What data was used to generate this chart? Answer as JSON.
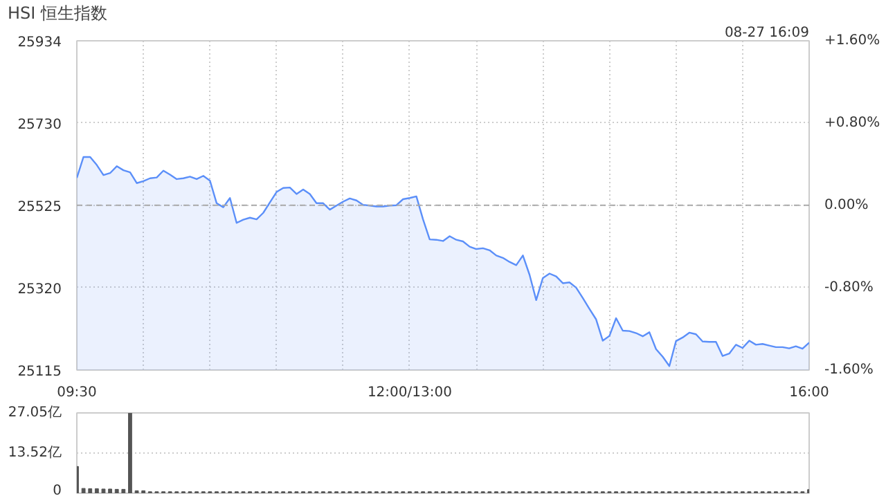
{
  "chart_data": [
    {
      "type": "area",
      "title": "HSI 恒生指数",
      "annotations": [
        "08-27 16:09"
      ],
      "categories": [
        "09:30",
        null,
        null,
        null,
        null,
        null,
        null,
        null,
        null,
        null,
        null,
        null,
        null,
        null,
        null,
        null,
        null,
        null,
        null,
        null,
        null,
        null,
        null,
        null,
        null,
        null,
        null,
        null,
        null,
        null,
        null,
        null,
        null,
        null,
        null,
        null,
        null,
        null,
        null,
        null,
        null,
        null,
        null,
        null,
        null,
        null,
        null,
        null,
        null,
        null,
        "12:00/13:00",
        null,
        null,
        null,
        null,
        null,
        null,
        null,
        null,
        null,
        null,
        null,
        null,
        null,
        null,
        null,
        null,
        null,
        null,
        null,
        null,
        null,
        null,
        null,
        null,
        null,
        null,
        null,
        null,
        null,
        null,
        null,
        null,
        null,
        null,
        null,
        null,
        null,
        null,
        null,
        null,
        null,
        null,
        null,
        null,
        null,
        null,
        null,
        null,
        null,
        null,
        null,
        null,
        null,
        null,
        null,
        null,
        null,
        null,
        null,
        "16:00"
      ],
      "series": [
        {
          "color": "#5b8ff9",
          "values": [
            25593,
            25645,
            25645,
            25625,
            25600,
            25605,
            25622,
            25612,
            25607,
            25580,
            25585,
            25592,
            25594,
            25611,
            25601,
            25590,
            25592,
            25596,
            25590,
            25598,
            25586,
            25530,
            25520,
            25543,
            25481,
            25489,
            25494,
            25490,
            25506,
            25532,
            25558,
            25568,
            25569,
            25553,
            25564,
            25553,
            25530,
            25530,
            25514,
            25524,
            25534,
            25542,
            25537,
            25526,
            25524,
            25522,
            25522,
            25524,
            25525,
            25540,
            25543,
            25547,
            25490,
            25440,
            25439,
            25436,
            25448,
            25439,
            25435,
            25422,
            25416,
            25418,
            25413,
            25400,
            25394,
            25384,
            25376,
            25400,
            25352,
            25289,
            25344,
            25355,
            25348,
            25331,
            25333,
            25320,
            25294,
            25267,
            25241,
            25188,
            25200,
            25244,
            25213,
            25212,
            25207,
            25199,
            25209,
            25167,
            25148,
            25125,
            25187,
            25196,
            25208,
            25204,
            25186,
            25185,
            25185,
            25150,
            25156,
            25178,
            25170,
            25188,
            25178,
            25180,
            25176,
            25172,
            25172,
            25169,
            25174,
            25168,
            25183
          ]
        }
      ],
      "ylim": [
        25115,
        25934
      ],
      "yticks": [
        25115,
        25320,
        25525,
        25730,
        25934
      ],
      "y2lim": [
        -1.6,
        1.6
      ],
      "y2ticks": [
        {
          "value": -1.6,
          "label": "-1.60%"
        },
        {
          "value": -0.8,
          "label": "-0.80%"
        },
        {
          "value": 0,
          "label": "0.00%"
        },
        {
          "value": 0.8,
          "label": "+0.80%"
        },
        {
          "value": 1.6,
          "label": "+1.60%"
        }
      ],
      "ref_lines": [
        {
          "axis": "y",
          "value": 25525,
          "color": "#aaaaaa",
          "line_style": "dashed"
        }
      ],
      "grid": true,
      "line_style": "solid"
    },
    {
      "type": "bar",
      "categories": [
        null,
        null,
        null,
        null,
        null,
        null,
        null,
        null,
        null,
        null,
        null,
        null,
        null,
        null,
        null,
        null,
        null,
        null,
        null,
        null,
        null,
        null,
        null,
        null,
        null,
        null,
        null,
        null,
        null,
        null,
        null,
        null,
        null,
        null,
        null,
        null,
        null,
        null,
        null,
        null,
        null,
        null,
        null,
        null,
        null,
        null,
        null,
        null,
        null,
        null,
        null,
        null,
        null,
        null,
        null,
        null,
        null,
        null,
        null,
        null,
        null,
        null,
        null,
        null,
        null,
        null,
        null,
        null,
        null,
        null,
        null,
        null,
        null,
        null,
        null,
        null,
        null,
        null,
        null,
        null,
        null,
        null,
        null,
        null,
        null,
        null,
        null,
        null,
        null,
        null,
        null,
        null,
        null,
        null,
        null,
        null,
        null,
        null,
        null,
        null,
        null,
        null,
        null,
        null,
        null,
        null,
        null,
        null,
        null,
        null,
        null
      ],
      "series": [
        {
          "color": "#555555",
          "values": [
            9.0,
            1.6,
            1.5,
            1.5,
            1.4,
            1.4,
            1.3,
            1.3,
            27,
            0.8,
            0.8,
            0.5,
            0.5,
            0.5,
            0.5,
            0.5,
            0.5,
            0.5,
            0.5,
            0.5,
            0.5,
            0.5,
            0.5,
            0.5,
            0.5,
            0.5,
            0.5,
            0.5,
            0.5,
            0.5,
            0.5,
            0.5,
            0.5,
            0.5,
            0.5,
            0.5,
            0.5,
            0.5,
            0.5,
            0.5,
            0.5,
            0.5,
            0.5,
            0.5,
            0.5,
            0.5,
            0.5,
            0.5,
            0.5,
            0.5,
            0.5,
            0.5,
            0.5,
            0.5,
            0.5,
            0.5,
            0.5,
            0.5,
            0.5,
            0.5,
            0.5,
            0.5,
            0.5,
            0.5,
            0.5,
            0.5,
            0.5,
            0.5,
            0.5,
            0.5,
            0.5,
            0.5,
            0.5,
            0.5,
            0.5,
            0.5,
            0.5,
            0.5,
            0.5,
            0.5,
            0.5,
            0.5,
            0.5,
            0.5,
            0.5,
            0.5,
            0.5,
            0.5,
            0.5,
            0.5,
            0.5,
            0.5,
            0.5,
            0.5,
            0.5,
            0.5,
            0.5,
            0.5,
            0.5,
            0.5,
            0.5,
            0.5,
            0.5,
            0.5,
            0.5,
            0.5,
            0.5,
            0.5,
            0.5,
            0.5,
            1.2
          ]
        }
      ],
      "ylim": [
        0,
        27.05
      ],
      "yticks": [
        0,
        {
          "value": 13.52,
          "label": "13.52亿"
        },
        {
          "value": 27.05,
          "label": "27.05亿"
        }
      ],
      "tick_labels": "y",
      "grid": "y"
    }
  ]
}
